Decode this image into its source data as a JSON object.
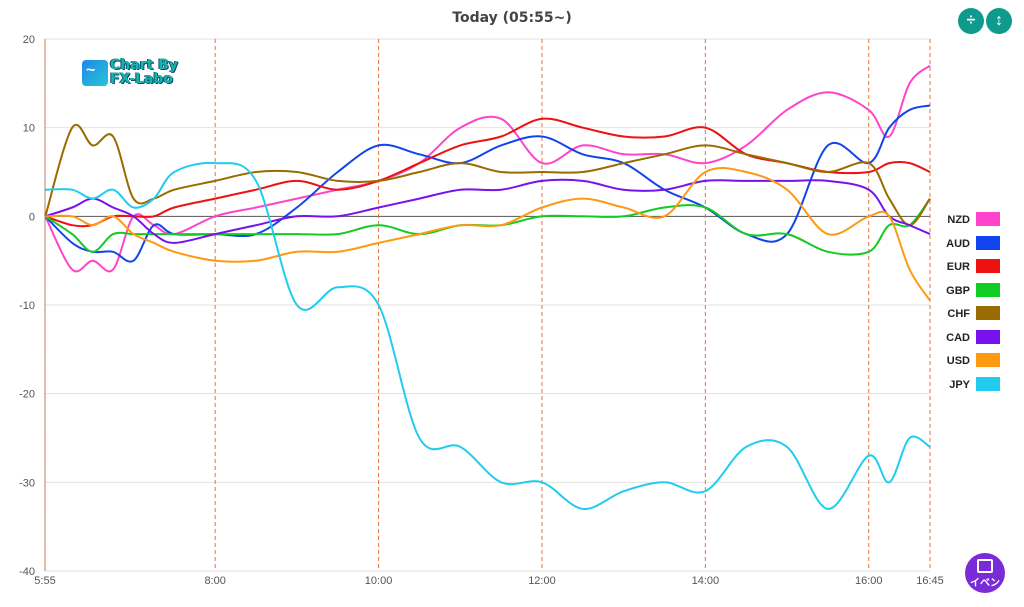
{
  "header": {
    "title": "Today  (05:55~)"
  },
  "logo": {
    "line1": "Chart By",
    "line2": "FX-Labo"
  },
  "toolbar": {
    "btn1": "÷",
    "btn2": "↕"
  },
  "event_button": {
    "label": "イベン"
  },
  "chart_data": {
    "type": "line",
    "title": "Today  (05:55~)",
    "ylim": [
      -40,
      20
    ],
    "y_ticks": [
      20,
      10,
      0,
      -10,
      -20,
      -30,
      -40
    ],
    "x_range": [
      5.9167,
      16.75
    ],
    "x_ticks": [
      {
        "label": "5:55",
        "value": 5.9167
      },
      {
        "label": "8:00",
        "value": 8
      },
      {
        "label": "10:00",
        "value": 10
      },
      {
        "label": "12:00",
        "value": 12
      },
      {
        "label": "14:00",
        "value": 14
      },
      {
        "label": "16:00",
        "value": 16
      },
      {
        "label": "16:45",
        "value": 16.75
      }
    ],
    "grid": true,
    "legend_position": "right",
    "x": [
      5.92,
      6.25,
      6.5,
      6.75,
      7.0,
      7.25,
      7.5,
      8.0,
      8.5,
      9.0,
      9.5,
      10.0,
      10.5,
      11.0,
      11.5,
      12.0,
      12.5,
      13.0,
      13.5,
      14.0,
      14.5,
      15.0,
      15.5,
      16.0,
      16.25,
      16.5,
      16.75
    ],
    "series": [
      {
        "name": "NZD",
        "color": "#ff44cc",
        "values": [
          0,
          -6,
          -5,
          -6,
          0,
          -1,
          -2,
          0,
          1,
          2,
          3,
          4,
          6,
          10,
          11,
          6,
          8,
          7,
          7,
          6,
          8,
          12,
          14,
          12,
          9,
          15,
          17
        ]
      },
      {
        "name": "AUD",
        "color": "#1144ee",
        "values": [
          0,
          -3,
          -4,
          -4,
          -5,
          -1,
          -2,
          -2,
          -2,
          1,
          5,
          8,
          7,
          6,
          8,
          9,
          7,
          6,
          3,
          1,
          -2,
          -2,
          8,
          6,
          10,
          12,
          12.5
        ]
      },
      {
        "name": "EUR",
        "color": "#ee1111",
        "values": [
          0,
          -1,
          -1,
          0,
          0,
          0,
          1,
          2,
          3,
          4,
          3,
          4,
          6,
          8,
          9,
          11,
          10,
          9,
          9,
          10,
          7,
          6,
          5,
          5,
          6,
          6,
          5
        ]
      },
      {
        "name": "GBP",
        "color": "#11cc22",
        "values": [
          0,
          -2,
          -4,
          -2,
          -2,
          -2,
          -2,
          -2,
          -2,
          -2,
          -2,
          -1,
          -2,
          -1,
          -1,
          0,
          0,
          0,
          1,
          1,
          -2,
          -2,
          -4,
          -4,
          -1,
          -1,
          2
        ]
      },
      {
        "name": "CHF",
        "color": "#9a6b00",
        "values": [
          0,
          10,
          8,
          9,
          2,
          2,
          3,
          4,
          5,
          5,
          4,
          4,
          5,
          6,
          5,
          5,
          5,
          6,
          7,
          8,
          7,
          6,
          5,
          6,
          2,
          -1,
          2
        ]
      },
      {
        "name": "CAD",
        "color": "#7711ee",
        "values": [
          0,
          1,
          2,
          1,
          0,
          -2,
          -3,
          -2,
          -1,
          0,
          0,
          1,
          2,
          3,
          3,
          4,
          4,
          3,
          3,
          4,
          4,
          4,
          4,
          3,
          0,
          -1,
          -2
        ]
      },
      {
        "name": "USD",
        "color": "#ff9911",
        "values": [
          0,
          0,
          -1,
          0,
          -2,
          -3,
          -4,
          -5,
          -5,
          -4,
          -4,
          -3,
          -2,
          -1,
          -1,
          1,
          2,
          1,
          0,
          5,
          5,
          3,
          -2,
          0,
          0,
          -6,
          -9.5
        ]
      },
      {
        "name": "JPY",
        "color": "#22ccee",
        "values": [
          3,
          3,
          2,
          3,
          1,
          2,
          5,
          6,
          4,
          -10,
          -8,
          -10,
          -25,
          -26,
          -30,
          -30,
          -33,
          -31,
          -30,
          -31,
          -26,
          -26,
          -33,
          -27,
          -30,
          -25,
          -26
        ]
      }
    ]
  }
}
